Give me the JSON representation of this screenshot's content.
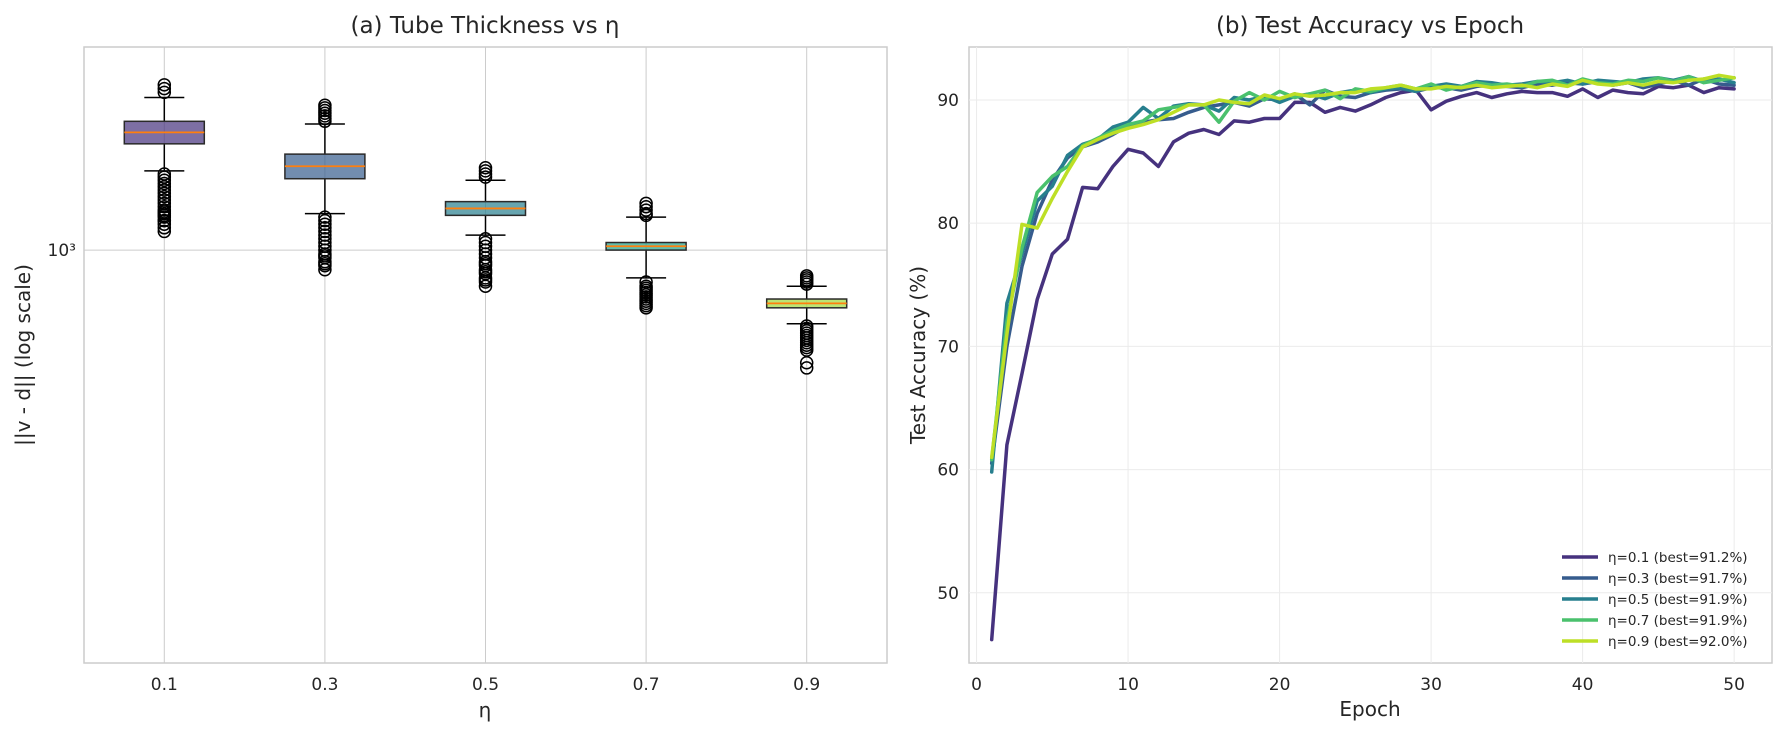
{
  "chart_data": [
    {
      "type": "box",
      "title": "(a) Tube Thickness vs η",
      "xlabel": "η",
      "ylabel": "||v - d|| (log scale)",
      "yscale": "log",
      "ylim": [
        340,
        1700
      ],
      "yticks": [
        {
          "value": 1000,
          "label": "10³"
        }
      ],
      "categories": [
        "0.1",
        "0.3",
        "0.5",
        "0.7",
        "0.9"
      ],
      "boxes": [
        {
          "category": "0.1",
          "color": "#46327e",
          "q1": 1320,
          "median": 1360,
          "q3": 1400,
          "whisker_low": 1230,
          "whisker_high": 1490,
          "outliers_low": [
            1050,
            1060,
            1070,
            1080,
            1090,
            1100,
            1110,
            1120,
            1130,
            1140,
            1150,
            1160,
            1170,
            1180,
            1190,
            1200,
            1210,
            1220,
            1080,
            1095,
            1105
          ],
          "outliers_high": [
            1510,
            1525,
            1540
          ]
        },
        {
          "category": "0.3",
          "color": "#365c8d",
          "q1": 1205,
          "median": 1245,
          "q3": 1285,
          "whisker_low": 1100,
          "whisker_high": 1390,
          "outliers_low": [
            950,
            960,
            970,
            980,
            990,
            1000,
            1010,
            1020,
            1030,
            1040,
            1050,
            1060,
            1070,
            1080,
            1090,
            965,
            985
          ],
          "outliers_high": [
            1400,
            1410,
            1420,
            1430,
            1440,
            1450,
            1460
          ]
        },
        {
          "category": "0.5",
          "color": "#277f8e",
          "q1": 1095,
          "median": 1115,
          "q3": 1135,
          "whisker_low": 1040,
          "whisker_high": 1200,
          "outliers_low": [
            910,
            920,
            930,
            940,
            950,
            960,
            970,
            980,
            990,
            1000,
            1010,
            1020,
            1030,
            925,
            945,
            965
          ],
          "outliers_high": [
            1210,
            1220,
            1230,
            1240
          ]
        },
        {
          "category": "0.7",
          "color": "#1fa187",
          "q1": 1000,
          "median": 1010,
          "q3": 1020,
          "whisker_low": 930,
          "whisker_high": 1090,
          "outliers_low": [
            860,
            870,
            880,
            890,
            900,
            910,
            920,
            865,
            875,
            885,
            895,
            905
          ],
          "outliers_high": [
            1095,
            1100,
            1110,
            1120,
            1130
          ]
        },
        {
          "category": "0.9",
          "color": "#a0da39",
          "q1": 860,
          "median": 870,
          "q3": 880,
          "whisker_low": 825,
          "whisker_high": 910,
          "outliers_low": [
            770,
            775,
            780,
            785,
            790,
            795,
            800,
            805,
            810,
            815,
            820,
            745,
            735
          ],
          "outliers_high": [
            915,
            920,
            925,
            930,
            935
          ]
        }
      ]
    },
    {
      "type": "line",
      "title": "(b) Test Accuracy vs Epoch",
      "xlabel": "Epoch",
      "ylabel": "Test Accuracy (%)",
      "xlim": [
        -0.5,
        52.5
      ],
      "ylim": [
        44.3,
        94.3
      ],
      "xticks": [
        0,
        10,
        20,
        30,
        40,
        50
      ],
      "yticks": [
        50,
        60,
        70,
        80,
        90
      ],
      "legend_position": "lower-right",
      "series": [
        {
          "name": "η=0.1 (best=91.2%)",
          "color": "#46327e",
          "x": [
            1,
            2,
            3,
            4,
            5,
            6,
            7,
            8,
            9,
            10,
            11,
            12,
            13,
            14,
            15,
            16,
            17,
            18,
            19,
            20,
            21,
            22,
            23,
            24,
            25,
            26,
            27,
            28,
            29,
            30,
            31,
            32,
            33,
            34,
            35,
            36,
            37,
            38,
            39,
            40,
            41,
            42,
            43,
            44,
            45,
            46,
            47,
            48,
            49,
            50
          ],
          "values": [
            46.2,
            62.0,
            67.8,
            73.8,
            77.5,
            78.7,
            82.9,
            82.8,
            84.6,
            86.0,
            85.7,
            84.6,
            86.6,
            87.3,
            87.6,
            87.2,
            88.3,
            88.2,
            88.5,
            88.5,
            89.8,
            89.8,
            89.0,
            89.4,
            89.1,
            89.6,
            90.2,
            90.6,
            90.8,
            89.2,
            89.9,
            90.3,
            90.6,
            90.2,
            90.5,
            90.7,
            90.6,
            90.6,
            90.3,
            90.9,
            90.2,
            90.8,
            90.6,
            90.5,
            91.1,
            91.0,
            91.2,
            90.6,
            91.0,
            90.9
          ]
        },
        {
          "name": "η=0.3 (best=91.7%)",
          "color": "#365c8d",
          "x": [
            1,
            2,
            3,
            4,
            5,
            6,
            7,
            8,
            9,
            10,
            11,
            12,
            13,
            14,
            15,
            16,
            17,
            18,
            19,
            20,
            21,
            22,
            23,
            24,
            25,
            26,
            27,
            28,
            29,
            30,
            31,
            32,
            33,
            34,
            35,
            36,
            37,
            38,
            39,
            40,
            41,
            42,
            43,
            44,
            45,
            46,
            47,
            48,
            49,
            50
          ],
          "values": [
            60.5,
            70.0,
            76.5,
            80.8,
            83.5,
            85.3,
            86.2,
            86.6,
            87.2,
            87.9,
            88.2,
            88.4,
            88.5,
            89.0,
            89.4,
            89.6,
            89.8,
            89.5,
            90.1,
            90.0,
            90.5,
            89.6,
            90.8,
            90.3,
            90.2,
            90.6,
            90.8,
            90.9,
            90.7,
            91.0,
            91.0,
            90.8,
            91.1,
            91.2,
            91.1,
            91.0,
            91.3,
            91.2,
            91.4,
            91.3,
            91.5,
            91.2,
            91.4,
            91.0,
            91.3,
            91.6,
            91.2,
            91.7,
            91.3,
            91.2
          ]
        },
        {
          "name": "η=0.5 (best=91.9%)",
          "color": "#277f8e",
          "x": [
            1,
            2,
            3,
            4,
            5,
            6,
            7,
            8,
            9,
            10,
            11,
            12,
            13,
            14,
            15,
            16,
            17,
            18,
            19,
            20,
            21,
            22,
            23,
            24,
            25,
            26,
            27,
            28,
            29,
            30,
            31,
            32,
            33,
            34,
            35,
            36,
            37,
            38,
            39,
            40,
            41,
            42,
            43,
            44,
            45,
            46,
            47,
            48,
            49,
            50
          ],
          "values": [
            59.8,
            73.5,
            77.5,
            81.8,
            83.0,
            85.5,
            86.4,
            86.8,
            87.8,
            88.2,
            89.4,
            88.5,
            89.5,
            89.7,
            89.6,
            89.1,
            90.2,
            90.0,
            90.3,
            89.8,
            90.3,
            90.5,
            90.1,
            90.6,
            90.8,
            90.6,
            90.9,
            91.0,
            90.7,
            91.1,
            91.3,
            91.1,
            91.5,
            91.4,
            91.2,
            91.3,
            91.5,
            91.4,
            91.6,
            91.3,
            91.6,
            91.5,
            91.4,
            91.7,
            91.8,
            91.6,
            91.9,
            91.5,
            91.7,
            91.4
          ]
        },
        {
          "name": "η=0.7 (best=91.9%)",
          "color": "#4ac16d",
          "x": [
            1,
            2,
            3,
            4,
            5,
            6,
            7,
            8,
            9,
            10,
            11,
            12,
            13,
            14,
            15,
            16,
            17,
            18,
            19,
            20,
            21,
            22,
            23,
            24,
            25,
            26,
            27,
            28,
            29,
            30,
            31,
            32,
            33,
            34,
            35,
            36,
            37,
            38,
            39,
            40,
            41,
            42,
            43,
            44,
            45,
            46,
            47,
            48,
            49,
            50
          ],
          "values": [
            60.8,
            72.0,
            78.0,
            82.5,
            83.8,
            84.6,
            86.3,
            86.9,
            87.5,
            88.0,
            88.3,
            89.2,
            89.4,
            89.6,
            89.6,
            88.2,
            89.9,
            90.6,
            90.0,
            90.7,
            90.2,
            90.5,
            90.8,
            90.1,
            90.9,
            90.7,
            91.0,
            91.2,
            90.9,
            91.3,
            90.8,
            91.1,
            91.4,
            91.2,
            91.3,
            91.1,
            91.5,
            91.6,
            91.2,
            91.7,
            91.4,
            91.3,
            91.6,
            91.5,
            91.8,
            91.5,
            91.9,
            91.4,
            91.6,
            91.8
          ]
        },
        {
          "name": "η=0.9 (best=92.0%)",
          "color": "#bddf26",
          "x": [
            1,
            2,
            3,
            4,
            5,
            6,
            7,
            8,
            9,
            10,
            11,
            12,
            13,
            14,
            15,
            16,
            17,
            18,
            19,
            20,
            21,
            22,
            23,
            24,
            25,
            26,
            27,
            28,
            29,
            30,
            31,
            32,
            33,
            34,
            35,
            36,
            37,
            38,
            39,
            40,
            41,
            42,
            43,
            44,
            45,
            46,
            47,
            48,
            49,
            50
          ],
          "values": [
            61.0,
            71.0,
            79.9,
            79.6,
            82.0,
            84.2,
            86.2,
            86.8,
            87.3,
            87.7,
            88.0,
            88.4,
            89.0,
            89.6,
            89.6,
            90.0,
            89.8,
            89.7,
            90.4,
            90.1,
            90.5,
            90.3,
            90.4,
            90.6,
            90.6,
            90.9,
            91.0,
            91.2,
            90.9,
            90.9,
            91.1,
            91.0,
            91.2,
            91.0,
            91.1,
            91.2,
            91.0,
            91.3,
            91.1,
            91.6,
            91.3,
            91.2,
            91.4,
            91.2,
            91.5,
            91.4,
            91.6,
            91.7,
            92.0,
            91.8
          ]
        }
      ]
    }
  ]
}
